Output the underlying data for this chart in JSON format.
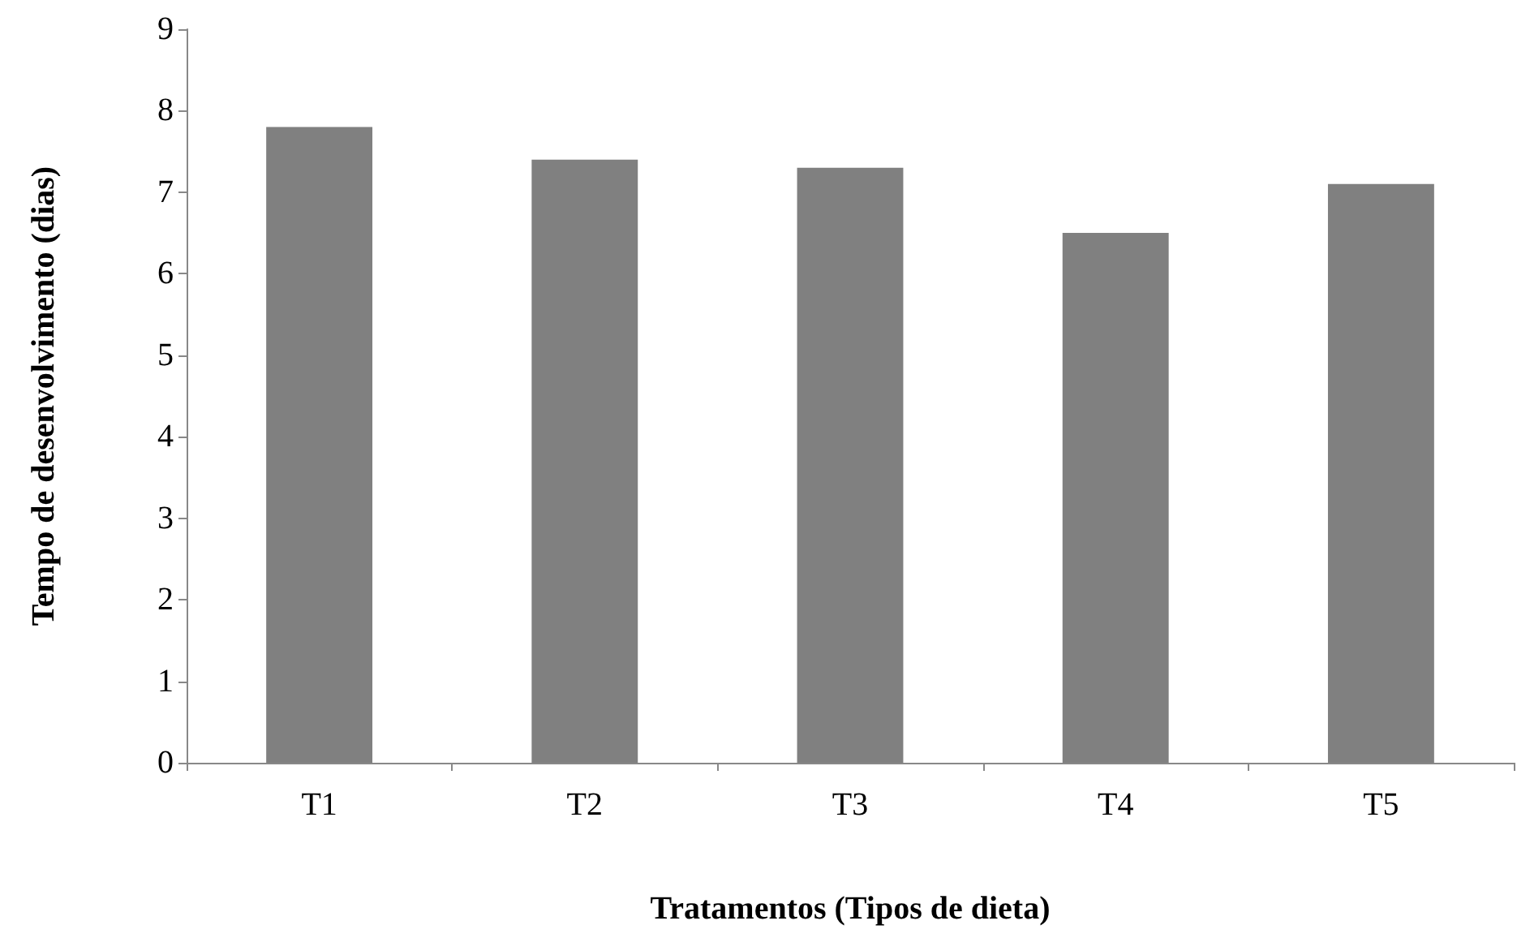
{
  "chart_data": {
    "type": "bar",
    "xlabel": "Tratamentos (Tipos de dieta)",
    "ylabel": "Tempo de desenvolvimento (dias)",
    "categories": [
      "T1",
      "T2",
      "T3",
      "T4",
      "T5"
    ],
    "values": [
      7.8,
      7.4,
      7.3,
      6.5,
      7.1
    ],
    "color": "#808080",
    "ylim": [
      0,
      9
    ],
    "yticks": [
      0,
      1,
      2,
      3,
      4,
      5,
      6,
      7,
      8,
      9
    ],
    "grid": false
  }
}
